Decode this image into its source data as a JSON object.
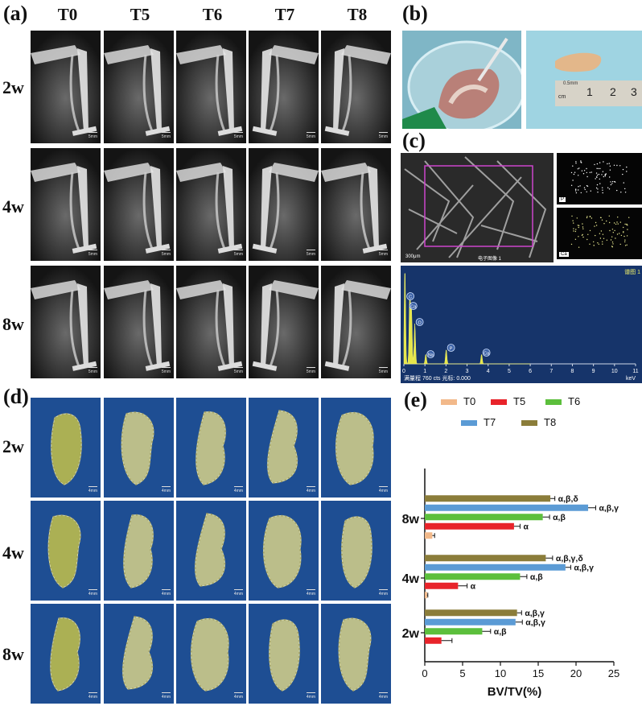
{
  "panels": {
    "a": "(a)",
    "b": "(b)",
    "c": "(c)",
    "d": "(d)",
    "e": "(e)"
  },
  "groups": [
    "T0",
    "T5",
    "T6",
    "T7",
    "T8"
  ],
  "timepoints": [
    "2w",
    "4w",
    "8w"
  ],
  "xray_scale": "5mm",
  "ct_scale": "4mm",
  "ruler_marks": [
    "1",
    "2",
    "3"
  ],
  "ruler_unit": "cm",
  "ruler_small_text": "0.5mm",
  "sem": {
    "scale_text": "300μm",
    "image_label": "电子图像 1",
    "map_labels": [
      "P",
      "Ca"
    ]
  },
  "eds": {
    "spectrum_title": "谱图 1",
    "peak_labels": [
      "C",
      "Ca",
      "O",
      "Na",
      "P",
      "Ca"
    ],
    "x_ticks": [
      "0",
      "1",
      "2",
      "3",
      "4",
      "5",
      "6",
      "7",
      "8",
      "9",
      "10",
      "11"
    ],
    "x_unit": "keV",
    "footer": "满量程 760 cts 光标: 0.000"
  },
  "chart_data": {
    "type": "bar",
    "orientation": "horizontal",
    "categories": [
      "2w",
      "4w",
      "8w"
    ],
    "series": [
      {
        "name": "T0",
        "color": "#f2b98a",
        "values": [
          0.0,
          0.3,
          1.0
        ],
        "errors": [
          0.0,
          0.1,
          0.3
        ],
        "annotations": [
          "",
          "",
          ""
        ]
      },
      {
        "name": "T5",
        "color": "#e8232a",
        "values": [
          2.2,
          4.4,
          11.8
        ],
        "errors": [
          1.4,
          1.2,
          0.8
        ],
        "annotations": [
          "",
          "α",
          "α"
        ]
      },
      {
        "name": "T6",
        "color": "#5cbf3c",
        "values": [
          7.6,
          12.6,
          15.6
        ],
        "errors": [
          1.1,
          0.9,
          0.9
        ],
        "annotations": [
          "α,β",
          "α,β",
          "α,β"
        ]
      },
      {
        "name": "T7",
        "color": "#5b9bd5",
        "values": [
          12.0,
          18.6,
          21.6
        ],
        "errors": [
          0.9,
          0.7,
          1.0
        ],
        "annotations": [
          "α,β,γ",
          "α,β,γ",
          "α,β,γ"
        ]
      },
      {
        "name": "T8",
        "color": "#8b7d3a",
        "values": [
          12.2,
          16.0,
          16.6
        ],
        "errors": [
          0.6,
          0.9,
          0.6
        ],
        "annotations": [
          "α,β,γ",
          "α,β,γ,δ",
          "α,β,δ"
        ]
      }
    ],
    "x_ticks": [
      "0",
      "5",
      "10",
      "15",
      "20",
      "25"
    ],
    "xlim": [
      0,
      25
    ],
    "xlabel": "BV/TV(%)",
    "legend": "top"
  }
}
